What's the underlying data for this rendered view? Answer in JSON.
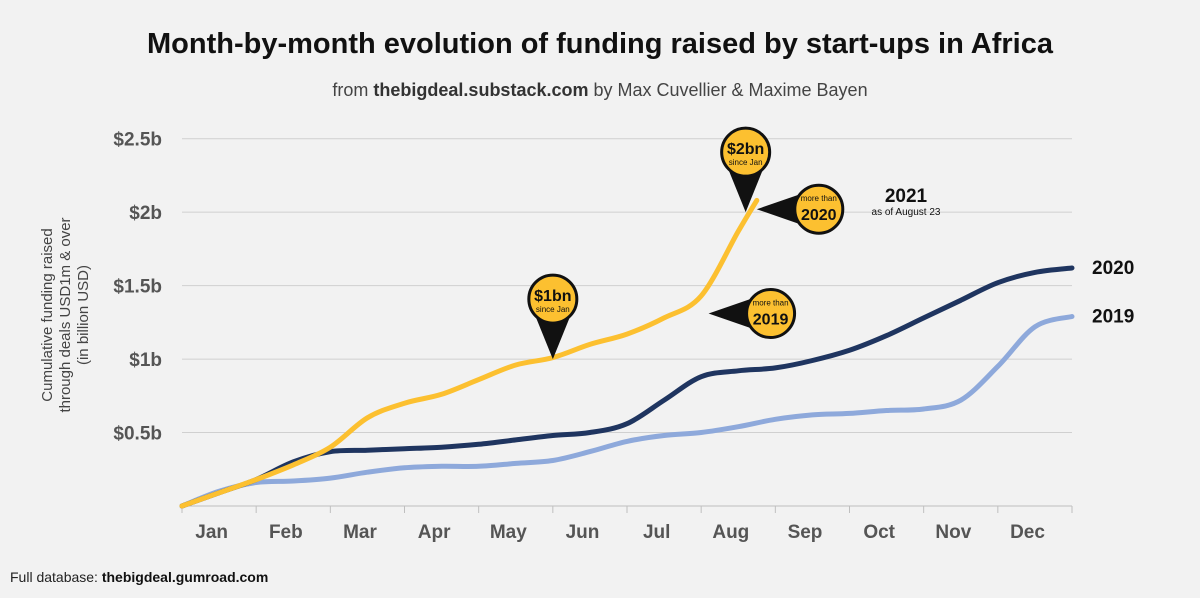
{
  "header": {
    "title": "Month-by-month evolution of funding raised by start-ups in Africa",
    "subtitle_prefix": "from ",
    "subtitle_site": "thebigdeal.substack.com",
    "subtitle_suffix": " by Max Cuvellier & Maxime Bayen"
  },
  "footer": {
    "label": "Full database: ",
    "link": "thebigdeal.gumroad.com"
  },
  "colors": {
    "s2021": "#fcc030",
    "s2020": "#1f3560",
    "s2019": "#8ea9db",
    "grid": "#d0d0d0",
    "pin_fill": "#fcc030",
    "pin_stroke": "#111111"
  },
  "chart_data": {
    "type": "line",
    "title": "Month-by-month evolution of funding raised by start-ups in Africa",
    "xlabel": "",
    "ylabel": "Cumulative funding raised through deals USD1m & over (in billion USD)",
    "ylabel_lines": [
      "Cumulative funding raised",
      "through deals USD1m & over",
      "(in billion USD)"
    ],
    "categories": [
      "Jan",
      "Feb",
      "Mar",
      "Apr",
      "May",
      "Jun",
      "Jul",
      "Aug",
      "Sep",
      "Oct",
      "Nov",
      "Dec"
    ],
    "yticks": [
      0.5,
      1,
      1.5,
      2,
      2.5
    ],
    "ytick_labels": [
      "$0.5b",
      "$1b",
      "$1.5b",
      "$2b",
      "$2.5b"
    ],
    "ylim": [
      0,
      2.6
    ],
    "grid": true,
    "series": [
      {
        "name": "2019",
        "label": "2019",
        "color": "#8ea9db",
        "x": [
          0,
          0.5,
          1,
          1.5,
          2,
          2.5,
          3,
          3.5,
          4,
          4.5,
          5,
          5.5,
          6,
          6.5,
          7,
          7.5,
          8,
          8.5,
          9,
          9.5,
          10,
          10.5,
          11,
          11.5,
          12
        ],
        "y": [
          0,
          0.1,
          0.16,
          0.17,
          0.19,
          0.23,
          0.26,
          0.27,
          0.27,
          0.29,
          0.31,
          0.37,
          0.44,
          0.48,
          0.5,
          0.54,
          0.59,
          0.62,
          0.63,
          0.65,
          0.66,
          0.72,
          0.95,
          1.22,
          1.29
        ]
      },
      {
        "name": "2020",
        "label": "2020",
        "color": "#1f3560",
        "x": [
          0,
          0.5,
          1,
          1.5,
          2,
          2.5,
          3,
          3.5,
          4,
          4.5,
          5,
          5.5,
          6,
          6.5,
          7,
          7.5,
          8,
          8.5,
          9,
          9.5,
          10,
          10.5,
          11,
          11.5,
          12
        ],
        "y": [
          0,
          0.09,
          0.18,
          0.3,
          0.37,
          0.38,
          0.39,
          0.4,
          0.42,
          0.45,
          0.48,
          0.5,
          0.56,
          0.72,
          0.88,
          0.92,
          0.94,
          0.99,
          1.06,
          1.16,
          1.28,
          1.4,
          1.52,
          1.59,
          1.62
        ]
      },
      {
        "name": "2021",
        "label": "2021",
        "sublabel": "as of August 23",
        "color": "#fcc030",
        "x": [
          0,
          0.5,
          1,
          1.5,
          2,
          2.5,
          3,
          3.5,
          4,
          4.5,
          5,
          5.5,
          6,
          6.5,
          7,
          7.5,
          7.75
        ],
        "y": [
          0,
          0.09,
          0.18,
          0.28,
          0.4,
          0.6,
          0.7,
          0.76,
          0.86,
          0.96,
          1.01,
          1.1,
          1.17,
          1.28,
          1.43,
          1.87,
          2.08
        ]
      }
    ],
    "annotations": [
      {
        "big": "$1bn",
        "small": "since Jan",
        "type": "pin",
        "x": 5,
        "y": 1.0
      },
      {
        "big": "$2bn",
        "small": "since Jan",
        "type": "pin",
        "x": 7.6,
        "y": 2.0
      },
      {
        "big": "2019",
        "small": "more than",
        "type": "bubble",
        "x": 7.1,
        "y": 1.31
      },
      {
        "big": "2020",
        "small": "more than",
        "type": "bubble",
        "x": 7.75,
        "y": 2.02
      }
    ]
  }
}
